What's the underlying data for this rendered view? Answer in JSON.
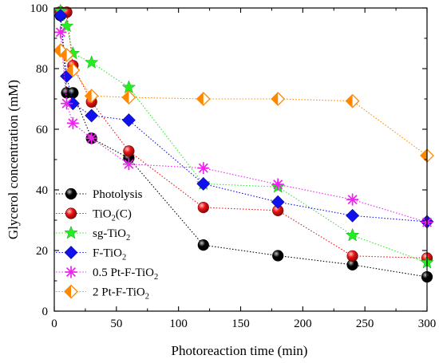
{
  "chart_data": {
    "type": "scatter",
    "xlabel": "Photoreaction time (min)",
    "ylabel": "Glycerol concentration (mM)",
    "xlim": [
      0,
      300
    ],
    "ylim": [
      0,
      100
    ],
    "xticks": [
      0,
      50,
      100,
      150,
      200,
      250,
      300
    ],
    "yticks": [
      0,
      20,
      40,
      60,
      80,
      100
    ],
    "grid": false,
    "legend_position": "bottom-left",
    "line_style": "dotted",
    "series": [
      {
        "name": "Photolysis",
        "name_base": "Photolysis",
        "name_sub": "",
        "name_suffix": "",
        "color": "#000000",
        "marker": "circle",
        "points": [
          [
            5,
            97.5
          ],
          [
            10,
            72
          ],
          [
            15,
            72
          ],
          [
            30,
            57
          ],
          [
            60,
            50.5
          ],
          [
            120,
            21.8
          ],
          [
            180,
            18.3
          ],
          [
            240,
            15.3
          ],
          [
            300,
            11.3
          ]
        ]
      },
      {
        "name": "TiO2(C)",
        "name_base": "TiO",
        "name_sub": "2",
        "name_suffix": "(C)",
        "color": "#ee1111",
        "marker": "circle",
        "points": [
          [
            5,
            98.7
          ],
          [
            10,
            98.6
          ],
          [
            15,
            81
          ],
          [
            30,
            69
          ],
          [
            60,
            52.8
          ],
          [
            120,
            34.2
          ],
          [
            180,
            33.2
          ],
          [
            240,
            18.2
          ],
          [
            300,
            17.5
          ]
        ]
      },
      {
        "name": "sg-TiO2",
        "name_base": "sg-TiO",
        "name_sub": "2",
        "name_suffix": "",
        "color": "#22ee22",
        "marker": "star",
        "points": [
          [
            5,
            99
          ],
          [
            10,
            94
          ],
          [
            15,
            85
          ],
          [
            30,
            82
          ],
          [
            60,
            73.8
          ],
          [
            120,
            42
          ],
          [
            180,
            41
          ],
          [
            240,
            25
          ],
          [
            300,
            16
          ]
        ]
      },
      {
        "name": "F-TiO2",
        "name_base": "F-TiO",
        "name_sub": "2",
        "name_suffix": "",
        "color": "#1111ee",
        "marker": "diamond",
        "points": [
          [
            5,
            97.5
          ],
          [
            10,
            77.5
          ],
          [
            15,
            68.5
          ],
          [
            30,
            64.5
          ],
          [
            60,
            63
          ],
          [
            120,
            42
          ],
          [
            180,
            36
          ],
          [
            240,
            31.5
          ],
          [
            300,
            29.5
          ]
        ]
      },
      {
        "name": "0.5 Pt-F-TiO2",
        "name_base": "0.5 Pt-F-TiO",
        "name_sub": "2",
        "name_suffix": "",
        "color": "#ee22ee",
        "marker": "asterisk",
        "points": [
          [
            5,
            92
          ],
          [
            10,
            68.5
          ],
          [
            15,
            62
          ],
          [
            30,
            57
          ],
          [
            60,
            48.5
          ],
          [
            120,
            47.2
          ],
          [
            180,
            41.8
          ],
          [
            240,
            36.8
          ],
          [
            300,
            29.3
          ]
        ]
      },
      {
        "name": "2 Pt-F-TiO2",
        "name_base": "2 Pt-F-TiO",
        "name_sub": "2",
        "name_suffix": "",
        "color": "#ff8800",
        "marker": "half-diamond",
        "points": [
          [
            5,
            86
          ],
          [
            10,
            84.5
          ],
          [
            15,
            79.5
          ],
          [
            30,
            71
          ],
          [
            60,
            70.5
          ],
          [
            120,
            70
          ],
          [
            180,
            70
          ],
          [
            240,
            69.3
          ],
          [
            300,
            51.3
          ]
        ]
      }
    ]
  }
}
